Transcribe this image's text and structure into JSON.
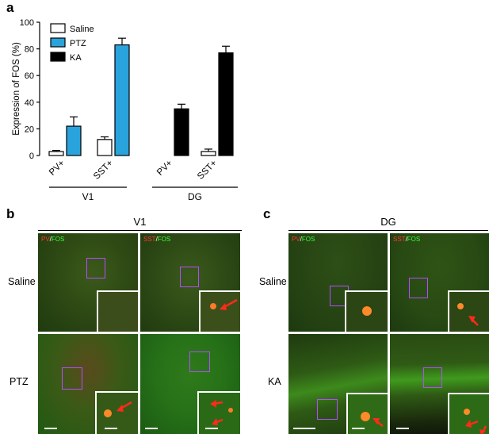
{
  "panel_a": {
    "letter": "a",
    "chart_data": {
      "type": "bar",
      "ylabel": "Expression of FOS (%)",
      "ylim": [
        0,
        100
      ],
      "yticks": [
        "0",
        "20",
        "40",
        "60",
        "80",
        "100"
      ],
      "legend_position": "top-left",
      "series": [
        {
          "name": "Saline",
          "color": "#ffffff"
        },
        {
          "name": "PTZ",
          "color": "#29a3dc"
        },
        {
          "name": "KA",
          "color": "#000000"
        }
      ],
      "groups": [
        {
          "region": "V1",
          "category": "PV+",
          "bars": [
            {
              "series": "Saline",
              "value": 3,
              "error": 0.8
            },
            {
              "series": "PTZ",
              "value": 22,
              "error": 7
            }
          ]
        },
        {
          "region": "V1",
          "category": "SST+",
          "bars": [
            {
              "series": "Saline",
              "value": 12,
              "error": 2
            },
            {
              "series": "PTZ",
              "value": 83,
              "error": 5
            }
          ]
        },
        {
          "region": "DG",
          "category": "PV+",
          "bars": [
            {
              "series": "Saline",
              "value": 0,
              "error": 0
            },
            {
              "series": "KA",
              "value": 35,
              "error": 3.5
            }
          ]
        },
        {
          "region": "DG",
          "category": "SST+",
          "bars": [
            {
              "series": "Saline",
              "value": 3,
              "error": 1.8
            },
            {
              "series": "KA",
              "value": 77,
              "error": 5
            }
          ]
        }
      ],
      "region_labels": [
        "V1",
        "DG"
      ]
    }
  },
  "panel_b": {
    "letter": "b",
    "title": "V1",
    "rows": [
      "Saline",
      "PTZ"
    ],
    "columns": [
      {
        "marker": "PV",
        "sep": "/",
        "fos": "FOS"
      },
      {
        "marker": "SST",
        "sep": "/",
        "fos": "FOS"
      }
    ]
  },
  "panel_c": {
    "letter": "c",
    "title": "DG",
    "rows": [
      "Saline",
      "KA"
    ],
    "columns": [
      {
        "marker": "PV",
        "sep": "/",
        "fos": "FOS"
      },
      {
        "marker": "SST",
        "sep": "/",
        "fos": "FOS"
      }
    ]
  },
  "colors": {
    "saline": "#ffffff",
    "ptz": "#29a3dc",
    "ka": "#000000",
    "roi": "#b44cff",
    "arrow": "#ff2a1a",
    "marker_red": "#ff3b2f",
    "fos_green": "#35ff3a"
  }
}
